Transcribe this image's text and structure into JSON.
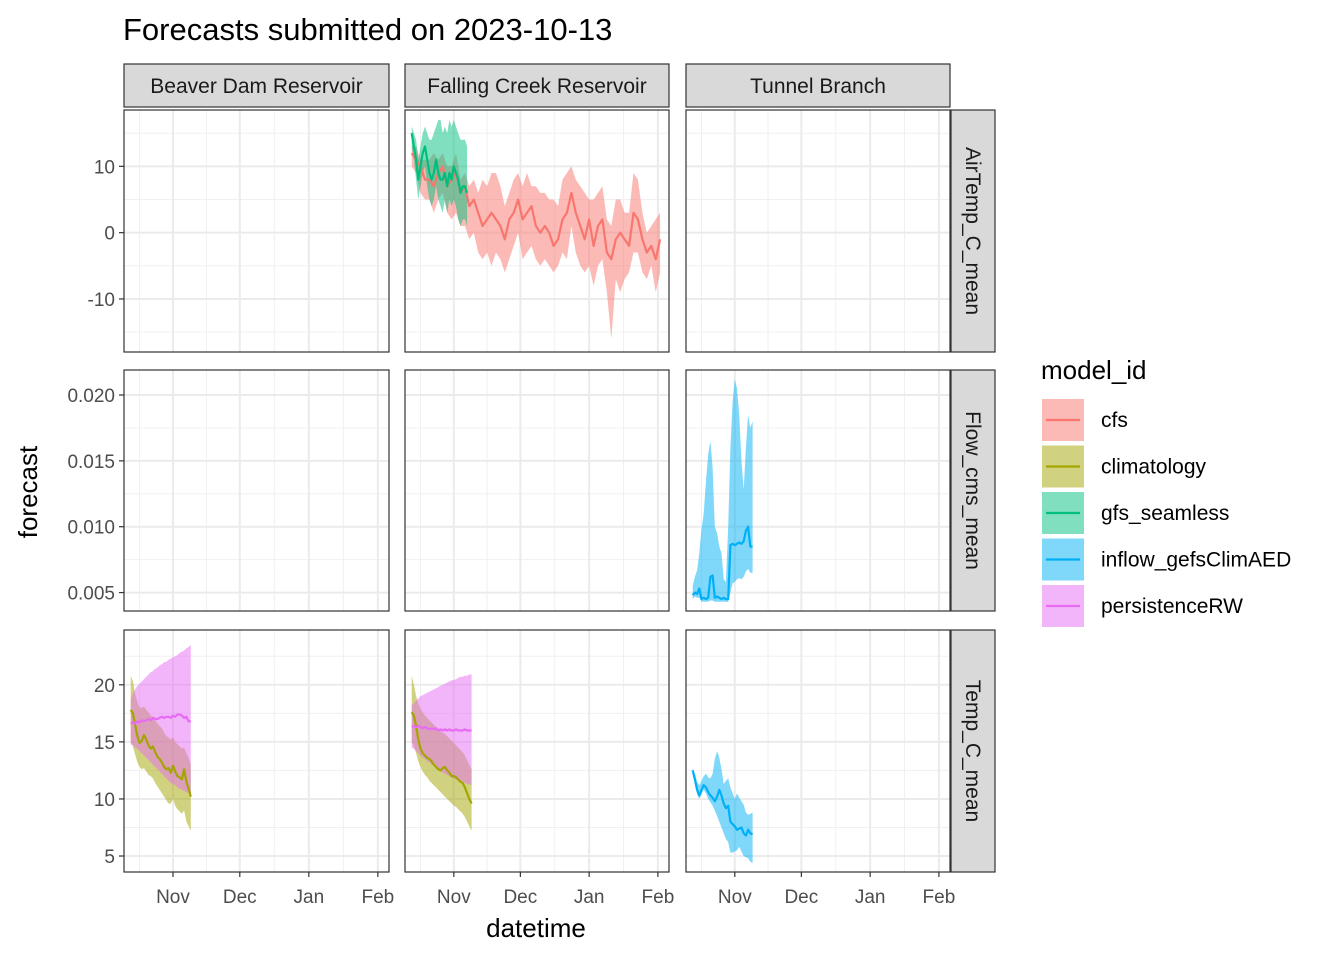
{
  "chart_data": {
    "type": "line",
    "title": "Forecasts submitted on 2023-10-13",
    "xlabel": "datetime",
    "ylabel": "forecast",
    "x_ticks": [
      {
        "label": "Nov",
        "date": "2023-11-01"
      },
      {
        "label": "Dec",
        "date": "2023-12-01"
      },
      {
        "label": "Jan",
        "date": "2024-01-01"
      },
      {
        "label": "Feb",
        "date": "2024-02-01"
      }
    ],
    "xlim": [
      "2023-10-10",
      "2024-02-06"
    ],
    "columns": [
      "Beaver Dam Reservoir",
      "Falling Creek Reservoir",
      "Tunnel Branch"
    ],
    "rows": [
      {
        "label": "AirTemp_C_mean",
        "ylim": [
          -18,
          18.5
        ],
        "ticks": [
          {
            "v": -10,
            "label": "-10"
          },
          {
            "v": 0,
            "label": "0"
          },
          {
            "v": 10,
            "label": "10"
          }
        ]
      },
      {
        "label": "Flow_cms_mean",
        "ylim": [
          0.0036,
          0.0219
        ],
        "ticks": [
          {
            "v": 0.005,
            "label": "0.005"
          },
          {
            "v": 0.01,
            "label": "0.010"
          },
          {
            "v": 0.015,
            "label": "0.015"
          },
          {
            "v": 0.02,
            "label": "0.020"
          }
        ]
      },
      {
        "label": "Temp_C_mean",
        "ylim": [
          3.6,
          24.8
        ],
        "ticks": [
          {
            "v": 5,
            "label": "5"
          },
          {
            "v": 10,
            "label": "10"
          },
          {
            "v": 15,
            "label": "15"
          },
          {
            "v": 20,
            "label": "20"
          }
        ]
      }
    ],
    "legend": {
      "title": "model_id",
      "position": "right",
      "items": [
        {
          "name": "cfs",
          "color": "#F8766D"
        },
        {
          "name": "climatology",
          "color": "#A3A500"
        },
        {
          "name": "gfs_seamless",
          "color": "#00BF7D"
        },
        {
          "name": "inflow_gefsClimAED",
          "color": "#00B0F6"
        },
        {
          "name": "persistenceRW",
          "color": "#E76BF3"
        }
      ]
    },
    "series": [
      {
        "model": "cfs",
        "row": 0,
        "col": 1,
        "start": "2023-10-13",
        "step_days": 2,
        "mean": [
          12,
          11,
          10,
          8,
          8,
          7,
          9,
          10,
          7,
          8,
          9,
          6,
          7,
          4,
          5,
          3,
          1,
          2,
          3,
          2,
          1,
          -1,
          2,
          3,
          5,
          2,
          3,
          4,
          1,
          0,
          1,
          0,
          -2,
          -1,
          2,
          3,
          6,
          3,
          1,
          -1,
          2,
          -2,
          1,
          2,
          -3,
          -4,
          -1,
          0,
          -1,
          -2,
          3,
          2,
          -1,
          -3,
          -2,
          -4,
          -1
        ],
        "lower": [
          10,
          9,
          6,
          5,
          5,
          3,
          5,
          6,
          3,
          2,
          3,
          1,
          1,
          -1,
          0,
          -3,
          -4,
          -3,
          -5,
          -3,
          -4,
          -6,
          -4,
          -2,
          0,
          -4,
          -3,
          -2,
          -4,
          -5,
          -4,
          -5,
          -6,
          -5,
          -3,
          -4,
          1,
          -3,
          -5,
          -6,
          -5,
          -8,
          -5,
          -4,
          -9,
          -16,
          -7,
          -9,
          -7,
          -6,
          -3,
          -3,
          -6,
          -7,
          -5,
          -9,
          -6
        ],
        "upper": [
          13,
          13,
          11,
          11,
          11,
          12,
          11,
          12,
          10,
          10,
          12,
          8,
          9,
          7,
          8,
          6,
          8,
          7,
          9,
          9,
          7,
          4,
          6,
          8,
          9,
          7,
          9,
          7,
          7,
          6,
          6,
          5,
          5,
          4,
          8,
          9,
          10,
          8,
          7,
          6,
          5,
          5,
          6,
          7,
          2,
          1,
          5,
          5,
          3,
          3,
          9,
          8,
          3,
          0,
          1,
          2,
          3
        ]
      },
      {
        "model": "gfs_seamless",
        "row": 0,
        "col": 1,
        "start": "2023-10-13",
        "step_days": 1,
        "mean": [
          15,
          13,
          11,
          8,
          10,
          12,
          13,
          11,
          9,
          8,
          9,
          11,
          9,
          8,
          8,
          9,
          7,
          9,
          8,
          10,
          9,
          8,
          6,
          7,
          7,
          6
        ],
        "lower": [
          13,
          11,
          8,
          5,
          7,
          9,
          10,
          7,
          5,
          4,
          5,
          7,
          5,
          4,
          3,
          5,
          3,
          5,
          4,
          5,
          4,
          2,
          1,
          2,
          2,
          1
        ],
        "upper": [
          16,
          15,
          14,
          11,
          13,
          15,
          16,
          15,
          14,
          14,
          15,
          16,
          17,
          17,
          15,
          16,
          15,
          17,
          16,
          17,
          16,
          15,
          14,
          14,
          14,
          13
        ]
      },
      {
        "model": "inflow_gefsClimAED",
        "row": 1,
        "col": 2,
        "start": "2023-10-13",
        "step_days": 1,
        "mean": [
          0.0048,
          0.005,
          0.0049,
          0.0053,
          0.0045,
          0.0046,
          0.0045,
          0.0046,
          0.0062,
          0.0063,
          0.0046,
          0.0047,
          0.0046,
          0.0045,
          0.0046,
          0.0045,
          0.0045,
          0.0086,
          0.0087,
          0.0086,
          0.0087,
          0.0088,
          0.0087,
          0.0089,
          0.0097,
          0.01,
          0.0085,
          0.0085
        ],
        "lower": [
          0.0045,
          0.0047,
          0.0046,
          0.0046,
          0.0043,
          0.0043,
          0.0043,
          0.0043,
          0.0044,
          0.0044,
          0.0043,
          0.0043,
          0.0043,
          0.0043,
          0.0043,
          0.0043,
          0.0043,
          0.005,
          0.0057,
          0.0058,
          0.006,
          0.0061,
          0.006,
          0.0062,
          0.0066,
          0.0068,
          0.0065,
          0.0065
        ],
        "upper": [
          0.0055,
          0.0062,
          0.0067,
          0.008,
          0.0098,
          0.011,
          0.0135,
          0.0155,
          0.0165,
          0.0145,
          0.01,
          0.0095,
          0.0085,
          0.008,
          0.006,
          0.0058,
          0.01,
          0.016,
          0.0195,
          0.0212,
          0.0205,
          0.0185,
          0.015,
          0.0128,
          0.016,
          0.0185,
          0.0175,
          0.018
        ]
      },
      {
        "model": "inflow_gefsClimAED",
        "row": 2,
        "col": 2,
        "start": "2023-10-13",
        "step_days": 1,
        "mean": [
          12.5,
          11.7,
          10.8,
          10.3,
          10.8,
          11.2,
          11.0,
          10.6,
          10.3,
          10.1,
          9.8,
          10.2,
          10.8,
          10.3,
          9.6,
          9.2,
          9.4,
          8.0,
          7.8,
          7.6,
          7.3,
          7.4,
          7.5,
          7.0,
          6.8,
          7.3,
          7.0,
          6.9
        ],
        "lower": [
          12.2,
          11.3,
          10.4,
          10.0,
          10.4,
          10.8,
          10.5,
          10.0,
          9.7,
          9.4,
          9.0,
          8.5,
          8.0,
          7.5,
          7.0,
          6.5,
          6.2,
          5.3,
          5.3,
          5.4,
          5.5,
          5.8,
          5.4,
          5.0,
          4.9,
          4.8,
          4.5,
          4.4
        ],
        "upper": [
          12.7,
          12.2,
          11.5,
          11.2,
          11.6,
          12.0,
          12.2,
          11.9,
          11.8,
          12.2,
          13.5,
          14.2,
          13.6,
          12.6,
          11.3,
          11.6,
          11.8,
          11.0,
          10.5,
          10.0,
          10.5,
          10.1,
          9.8,
          9.5,
          8.8,
          8.6,
          8.7,
          8.8
        ]
      },
      {
        "model": "climatology",
        "row": 2,
        "col": 0,
        "start": "2023-10-13",
        "step_days": 1,
        "mean": [
          17.8,
          17.5,
          16.5,
          15.5,
          14.9,
          15.1,
          15.6,
          15.2,
          14.7,
          14.4,
          14.6,
          14.1,
          13.7,
          13.5,
          13.2,
          12.8,
          12.6,
          12.7,
          12.3,
          12.9,
          12.4,
          12.0,
          11.9,
          11.7,
          12.6,
          11.5,
          10.9,
          10.2
        ],
        "lower": [
          15.0,
          14.6,
          13.9,
          13.2,
          12.8,
          12.6,
          12.7,
          12.4,
          12.1,
          12.0,
          11.8,
          11.4,
          11.1,
          10.8,
          10.5,
          10.2,
          9.9,
          9.6,
          9.6,
          10.0,
          9.4,
          9.1,
          8.9,
          8.7,
          9.0,
          8.0,
          7.6,
          7.2
        ],
        "upper": [
          20.8,
          20.3,
          19.2,
          18.5,
          18.0,
          18.0,
          18.1,
          17.8,
          17.6,
          17.3,
          17.2,
          16.9,
          16.6,
          16.4,
          16.2,
          15.8,
          15.5,
          15.4,
          15.2,
          15.4,
          15.0,
          14.8,
          14.6,
          14.4,
          14.5,
          14.0,
          13.6,
          13.0
        ]
      },
      {
        "model": "persistenceRW",
        "row": 2,
        "col": 0,
        "start": "2023-10-13",
        "step_days": 1,
        "mean": [
          16.6,
          16.7,
          16.6,
          16.8,
          16.7,
          16.9,
          16.8,
          16.9,
          17.0,
          16.9,
          17.1,
          17.0,
          17.0,
          17.1,
          17.2,
          17.1,
          17.2,
          17.2,
          17.1,
          17.3,
          17.2,
          17.4,
          17.4,
          17.3,
          17.1,
          17.2,
          16.8,
          16.8
        ],
        "lower": [
          14.8,
          14.7,
          14.5,
          14.4,
          14.2,
          14.0,
          13.8,
          13.6,
          13.4,
          13.2,
          13.0,
          12.8,
          12.6,
          12.4,
          12.2,
          12.0,
          11.8,
          11.6,
          11.4,
          11.3,
          11.2,
          11.0,
          10.9,
          10.8,
          10.7,
          10.6,
          10.5,
          10.4
        ],
        "upper": [
          18.8,
          19.2,
          19.6,
          19.9,
          20.1,
          20.3,
          20.5,
          20.7,
          20.9,
          21.1,
          21.2,
          21.4,
          21.5,
          21.7,
          21.8,
          22.0,
          22.0,
          22.2,
          22.3,
          22.4,
          22.5,
          22.6,
          22.8,
          22.9,
          23.0,
          23.2,
          23.3,
          23.5
        ]
      },
      {
        "model": "climatology",
        "row": 2,
        "col": 1,
        "start": "2023-10-13",
        "step_days": 1,
        "mean": [
          17.6,
          17.3,
          16.4,
          15.2,
          14.4,
          14.0,
          13.8,
          13.6,
          13.5,
          13.3,
          13.0,
          12.8,
          12.6,
          12.5,
          12.7,
          12.8,
          12.5,
          12.3,
          12.0,
          12.0,
          11.9,
          11.7,
          11.5,
          11.4,
          11.0,
          10.5,
          10.0,
          9.6
        ],
        "lower": [
          15.0,
          14.6,
          14.0,
          13.3,
          12.8,
          12.4,
          12.1,
          11.9,
          11.6,
          11.4,
          11.2,
          11.0,
          10.8,
          10.6,
          10.4,
          10.2,
          10.0,
          9.8,
          9.6,
          9.4,
          9.3,
          9.1,
          8.9,
          8.7,
          8.4,
          8.0,
          7.6,
          7.2
        ],
        "upper": [
          20.8,
          20.0,
          19.0,
          18.4,
          17.9,
          17.6,
          17.3,
          17.1,
          16.9,
          16.7,
          16.5,
          16.3,
          16.1,
          15.9,
          15.8,
          15.7,
          15.5,
          15.3,
          15.1,
          14.9,
          14.7,
          14.5,
          14.3,
          14.1,
          13.8,
          13.4,
          13.0,
          12.6
        ]
      },
      {
        "model": "persistenceRW",
        "row": 2,
        "col": 1,
        "start": "2023-10-13",
        "step_days": 1,
        "mean": [
          16.3,
          16.4,
          16.3,
          16.4,
          16.3,
          16.2,
          16.3,
          16.2,
          16.1,
          16.2,
          16.1,
          16.2,
          16.0,
          16.1,
          16.0,
          16.1,
          16.0,
          16.1,
          16.0,
          16.0,
          16.1,
          16.0,
          16.0,
          16.0,
          16.1,
          16.0,
          16.0,
          16.0
        ],
        "lower": [
          14.5,
          14.4,
          14.2,
          14.0,
          13.8,
          13.6,
          13.5,
          13.3,
          13.2,
          13.0,
          12.9,
          12.7,
          12.6,
          12.4,
          12.3,
          12.2,
          12.1,
          12.0,
          11.9,
          11.8,
          11.7,
          11.6,
          11.6,
          11.5,
          11.4,
          11.3,
          11.3,
          11.2
        ],
        "upper": [
          18.2,
          18.4,
          18.6,
          18.8,
          19.0,
          19.1,
          19.2,
          19.3,
          19.4,
          19.5,
          19.6,
          19.7,
          19.8,
          19.9,
          20.0,
          20.1,
          20.2,
          20.3,
          20.4,
          20.4,
          20.5,
          20.6,
          20.7,
          20.7,
          20.8,
          20.8,
          20.9,
          20.9
        ]
      }
    ]
  }
}
